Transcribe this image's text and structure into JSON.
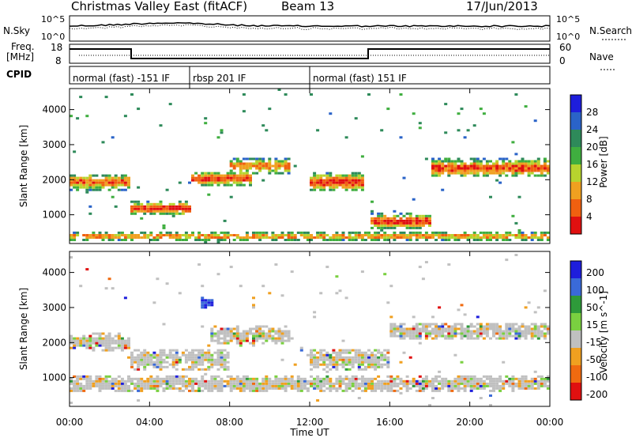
{
  "header": {
    "title": "Christmas Valley East (fitACF)",
    "beam": "Beam 13",
    "date": "17/Jun/2013"
  },
  "labels": {
    "nsky": "N.Sky",
    "nsearch": "N.Search",
    "freq_line1": "Freq.",
    "freq_line2": "[MHz]",
    "nave": "Nave",
    "cpid": "CPID",
    "noise_ticks_top": "10^5",
    "noise_ticks_bottom": "10^0",
    "freq_tick_top": "18",
    "freq_tick_bottom": "8",
    "nave_tick_top": "60",
    "nave_tick_bottom": "0"
  },
  "cpid_segments": [
    {
      "label": "normal (fast) -151 IF",
      "start_hour": 0,
      "end_hour": 6
    },
    {
      "label": "rbsp 201 IF",
      "start_hour": 6,
      "end_hour": 12
    },
    {
      "label": "normal (fast) 151 IF",
      "start_hour": 12,
      "end_hour": 24
    }
  ],
  "chart_data": [
    {
      "type": "heatmap",
      "quantity": "Power",
      "ylabel": "Slant Range [km]",
      "xlabel": "Time UT",
      "ylim": [
        180,
        4600
      ],
      "yticks": [
        "1000",
        "2000",
        "3000",
        "4000"
      ],
      "xticks": [
        "00:00",
        "04:00",
        "08:00",
        "12:00",
        "16:00",
        "20:00",
        "00:00"
      ],
      "colorbar": {
        "label": "Power [dB]",
        "ticks": [
          "4",
          "8",
          "12",
          "16",
          "20",
          "24",
          "28"
        ],
        "colors": [
          "#1e1edc",
          "#2a63c8",
          "#2e8a5a",
          "#3fae3f",
          "#b7d42e",
          "#f0a020",
          "#f06010",
          "#e01010"
        ]
      },
      "bands": [
        {
          "t0": 0,
          "t1": 3,
          "range": 1900,
          "spread": 220,
          "level": 0.65
        },
        {
          "t0": 3,
          "t1": 6,
          "range": 1150,
          "spread": 180,
          "level": 0.95
        },
        {
          "t0": 6,
          "t1": 9,
          "range": 2000,
          "spread": 200,
          "level": 0.8
        },
        {
          "t0": 8,
          "t1": 11,
          "range": 2350,
          "spread": 220,
          "level": 0.5
        },
        {
          "t0": 12,
          "t1": 14.6,
          "range": 1900,
          "spread": 260,
          "level": 0.85
        },
        {
          "t0": 15,
          "t1": 18,
          "range": 780,
          "spread": 200,
          "level": 0.9
        },
        {
          "t0": 18,
          "t1": 24,
          "range": 2300,
          "spread": 250,
          "level": 0.75
        },
        {
          "t0": 0,
          "t1": 24,
          "range": 350,
          "spread": 120,
          "level": 0.45
        }
      ]
    },
    {
      "type": "heatmap",
      "quantity": "Velocity",
      "ylabel": "Slant Range [km]",
      "xlabel": "Time UT",
      "ylim": [
        180,
        4600
      ],
      "yticks": [
        "1000",
        "2000",
        "3000",
        "4000"
      ],
      "xticks": [
        "00:00",
        "04:00",
        "08:00",
        "12:00",
        "16:00",
        "20:00",
        "00:00"
      ],
      "colorbar": {
        "label": "Velocity [m s^-1]",
        "ticks": [
          "200",
          "100",
          "50",
          "15",
          "-15",
          "-50",
          "-100",
          "-200"
        ],
        "colors": [
          "#1e1edc",
          "#3a6ad8",
          "#2e9a3a",
          "#7ad040",
          "#c0c0c0",
          "#f0a020",
          "#f06a10",
          "#e01010"
        ]
      },
      "bands": [
        {
          "t0": 0,
          "t1": 3,
          "range": 2000,
          "spread": 250,
          "level": 0.5
        },
        {
          "t0": 3,
          "t1": 8,
          "range": 1500,
          "spread": 300,
          "level": 0.5
        },
        {
          "t0": 7,
          "t1": 11,
          "range": 2200,
          "spread": 250,
          "level": 0.5
        },
        {
          "t0": 12,
          "t1": 16,
          "range": 1500,
          "spread": 300,
          "level": 0.5
        },
        {
          "t0": 16,
          "t1": 24,
          "range": 2300,
          "spread": 250,
          "level": 0.5
        },
        {
          "t0": 0,
          "t1": 24,
          "range": 800,
          "spread": 220,
          "level": 0.5
        },
        {
          "t0": 6.5,
          "t1": 7.1,
          "range": 3100,
          "spread": 150,
          "level": 0.9
        }
      ]
    }
  ]
}
